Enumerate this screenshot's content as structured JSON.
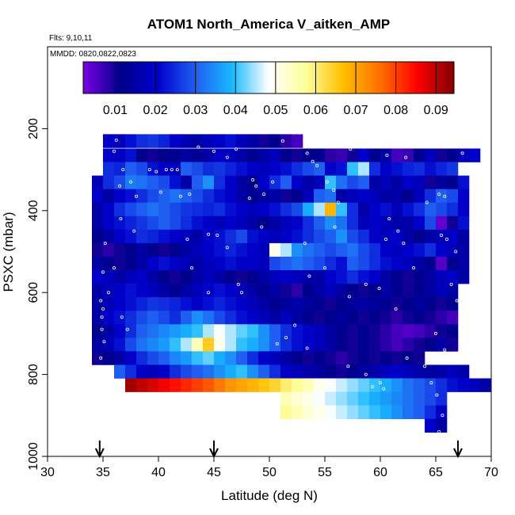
{
  "chart_data": {
    "type": "heatmap",
    "title": "ATOM1 North_America V_aitken_AMP",
    "notes": [
      "Flts: 9,10,11",
      "MMDD: 0820,0822,0823"
    ],
    "xlabel": "Latitude (deg N)",
    "ylabel": "PSXC (mbar)",
    "xlim": [
      30,
      70
    ],
    "ylim": [
      1000,
      0
    ],
    "x_ticks": [
      30,
      35,
      40,
      45,
      50,
      55,
      60,
      65,
      70
    ],
    "y_ticks": [
      200,
      400,
      600,
      800,
      1000
    ],
    "colorbar": {
      "range": [
        0.002,
        0.0945
      ],
      "ticks": [
        "0.01",
        "0.02",
        "0.03",
        "0.04",
        "0.05",
        "0.06",
        "0.07",
        "0.08",
        "0.09"
      ],
      "colors": [
        "#7a00e6",
        "#000088",
        "#0000cc",
        "#1e5cf0",
        "#18b8ff",
        "#ffffff",
        "#ffff99",
        "#ffc000",
        "#ff7000",
        "#ff0000",
        "#800000"
      ]
    },
    "flight_markers_lat": [
      34.7,
      45,
      67
    ],
    "cell_size": {
      "dlat": 1,
      "dp": 33
    },
    "rows": [
      {
        "p": 230,
        "lat0": 35,
        "values": [
          0.02,
          0.018,
          0.022,
          0.025,
          0.026,
          0.024,
          0.02,
          0.017,
          0.015,
          0.018,
          0.02,
          0.022,
          0.018,
          0.015,
          0.01,
          0.012,
          0.008,
          0.006
        ]
      },
      {
        "p": 265,
        "lat0": 35,
        "values": [
          0.02,
          0.019,
          0.022,
          0.012,
          0.01,
          0.011,
          0.012,
          0.015,
          0.013,
          0.015,
          0.02,
          0.018,
          0.015,
          0.012,
          0.015,
          0.018,
          0.011,
          0.01,
          0.012,
          0.011,
          0.008,
          0.007,
          0.01,
          0.02,
          0.012,
          0.015,
          0.006,
          0.007,
          0.012,
          0.018,
          0.01,
          0.012,
          0.018,
          0.02
        ]
      },
      {
        "p": 298,
        "lat0": 35,
        "values": [
          0.025,
          0.024,
          0.03,
          0.028,
          0.022,
          0.02,
          0.018,
          0.03,
          0.028,
          0.025,
          0.026,
          0.024,
          0.022,
          0.02,
          0.018,
          0.02,
          0.022,
          0.025,
          0.028,
          0.03,
          0.02,
          0.022,
          0.04,
          0.045,
          0.025,
          0.02,
          0.022,
          0.024,
          0.025,
          0.022,
          0.024,
          0.026
        ]
      },
      {
        "p": 331,
        "lat0": 34,
        "values": [
          0.018,
          0.025,
          0.028,
          0.033,
          0.032,
          0.03,
          0.028,
          0.022,
          0.015,
          0.03,
          0.035,
          0.025,
          0.02,
          0.015,
          0.012,
          0.02,
          0.025,
          0.03,
          0.02,
          0.015,
          0.018,
          0.04,
          0.032,
          0.028,
          0.03,
          0.015,
          0.018,
          0.015,
          0.02,
          0.018,
          0.01,
          0.014,
          0.012,
          0.022
        ]
      },
      {
        "p": 364,
        "lat0": 34,
        "values": [
          0.02,
          0.015,
          0.02,
          0.022,
          0.025,
          0.028,
          0.03,
          0.032,
          0.03,
          0.028,
          0.025,
          0.022,
          0.02,
          0.015,
          0.012,
          0.015,
          0.015,
          0.01,
          0.012,
          0.018,
          0.03,
          0.032,
          0.015,
          0.018,
          0.02,
          0.018,
          0.015,
          0.015,
          0.012,
          0.018,
          0.025,
          0.03,
          0.028,
          0.02
        ]
      },
      {
        "p": 397,
        "lat0": 34,
        "values": [
          0.015,
          0.02,
          0.025,
          0.028,
          0.03,
          0.032,
          0.03,
          0.028,
          0.026,
          0.025,
          0.024,
          0.025,
          0.022,
          0.02,
          0.018,
          0.02,
          0.022,
          0.025,
          0.028,
          0.038,
          0.045,
          0.068,
          0.04,
          0.025,
          0.015,
          0.02,
          0.022,
          0.018,
          0.022,
          0.025,
          0.03,
          0.028,
          0.025,
          0.02
        ]
      },
      {
        "p": 430,
        "lat0": 34,
        "values": [
          0.015,
          0.02,
          0.022,
          0.024,
          0.026,
          0.028,
          0.03,
          0.028,
          0.025,
          0.022,
          0.02,
          0.018,
          0.02,
          0.018,
          0.015,
          0.012,
          0.015,
          0.018,
          0.02,
          0.025,
          0.03,
          0.035,
          0.032,
          0.025,
          0.018,
          0.02,
          0.018,
          0.016,
          0.015,
          0.02,
          0.028,
          0.004,
          0.01,
          0.022
        ]
      },
      {
        "p": 463,
        "lat0": 34,
        "values": [
          0.012,
          0.015,
          0.02,
          0.022,
          0.025,
          0.024,
          0.022,
          0.02,
          0.018,
          0.015,
          0.02,
          0.022,
          0.025,
          0.028,
          0.022,
          0.02,
          0.018,
          0.02,
          0.022,
          0.025,
          0.028,
          0.03,
          0.035,
          0.028,
          0.025,
          0.02,
          0.018,
          0.02,
          0.015,
          0.012,
          0.015,
          0.018,
          0.02,
          0.015
        ]
      },
      {
        "p": 496,
        "lat0": 34,
        "values": [
          0.01,
          0.008,
          0.01,
          0.012,
          0.015,
          0.012,
          0.01,
          0.012,
          0.015,
          0.018,
          0.02,
          0.022,
          0.024,
          0.022,
          0.02,
          0.018,
          0.05,
          0.045,
          0.035,
          0.032,
          0.03,
          0.028,
          0.03,
          0.032,
          0.028,
          0.025,
          0.02,
          0.018,
          0.02,
          0.022,
          0.025,
          0.02,
          0.018,
          0.015
        ]
      },
      {
        "p": 529,
        "lat0": 34,
        "values": [
          0.015,
          0.012,
          0.01,
          0.012,
          0.015,
          0.02,
          0.022,
          0.02,
          0.018,
          0.015,
          0.018,
          0.02,
          0.022,
          0.02,
          0.02,
          0.018,
          0.028,
          0.03,
          0.032,
          0.03,
          0.028,
          0.025,
          0.022,
          0.03,
          0.028,
          0.025,
          0.022,
          0.02,
          0.018,
          0.015,
          0.012,
          0.005,
          0.012,
          0.015
        ]
      },
      {
        "p": 562,
        "lat0": 34,
        "values": [
          0.02,
          0.018,
          0.015,
          0.018,
          0.02,
          0.015,
          0.012,
          0.01,
          0.012,
          0.015,
          0.018,
          0.015,
          0.012,
          0.01,
          0.012,
          0.015,
          0.018,
          0.02,
          0.018,
          0.016,
          0.015,
          0.02,
          0.022,
          0.025,
          0.022,
          0.02,
          0.015,
          0.012,
          0.01,
          0.012,
          0.015,
          0.018,
          0.02,
          0.015
        ]
      },
      {
        "p": 595,
        "lat0": 34,
        "values": [
          0.015,
          0.018,
          0.02,
          0.022,
          0.02,
          0.018,
          0.015,
          0.012,
          0.015,
          0.018,
          0.02,
          0.022,
          0.02,
          0.018,
          0.015,
          0.012,
          0.015,
          0.01,
          0.008,
          0.012,
          0.015,
          0.018,
          0.015,
          0.012,
          0.01,
          0.012,
          0.015,
          0.012,
          0.01,
          0.012,
          0.015,
          0.018,
          0.015
        ]
      },
      {
        "p": 628,
        "lat0": 34,
        "values": [
          0.015,
          0.018,
          0.02,
          0.022,
          0.024,
          0.026,
          0.025,
          0.024,
          0.022,
          0.02,
          0.022,
          0.024,
          0.022,
          0.02,
          0.018,
          0.015,
          0.012,
          0.014,
          0.016,
          0.014,
          0.012,
          0.01,
          0.012,
          0.014,
          0.015,
          0.014,
          0.012,
          0.01,
          0.012,
          0.014,
          0.012,
          0.01,
          0.012
        ]
      },
      {
        "p": 661,
        "lat0": 34,
        "values": [
          0.015,
          0.02,
          0.022,
          0.025,
          0.028,
          0.03,
          0.028,
          0.025,
          0.03,
          0.035,
          0.032,
          0.028,
          0.025,
          0.022,
          0.02,
          0.018,
          0.015,
          0.018,
          0.015,
          0.012,
          0.01,
          0.012,
          0.014,
          0.012,
          0.01,
          0.012,
          0.01,
          0.008,
          0.01,
          0.012,
          0.01,
          0.008,
          0.006
        ]
      },
      {
        "p": 694,
        "lat0": 34,
        "values": [
          0.012,
          0.015,
          0.02,
          0.025,
          0.03,
          0.032,
          0.034,
          0.036,
          0.038,
          0.04,
          0.045,
          0.048,
          0.045,
          0.042,
          0.04,
          0.035,
          0.03,
          0.025,
          0.022,
          0.02,
          0.018,
          0.015,
          0.012,
          0.01,
          0.012,
          0.01,
          0.008,
          0.006,
          0.005,
          0.006,
          0.008,
          0.01,
          0.012
        ]
      },
      {
        "p": 727,
        "lat0": 34,
        "values": [
          0.015,
          0.018,
          0.022,
          0.028,
          0.032,
          0.034,
          0.036,
          0.04,
          0.045,
          0.055,
          0.065,
          0.05,
          0.045,
          0.04,
          0.038,
          0.035,
          0.03,
          0.025,
          0.022,
          0.02,
          0.018,
          0.015,
          0.012,
          0.01,
          0.012,
          0.01,
          0.008,
          0.006,
          0.008,
          0.01,
          0.012,
          0.015,
          0.01
        ]
      },
      {
        "p": 760,
        "lat0": 34,
        "values": [
          0.01,
          0.012,
          0.015,
          0.02,
          0.025,
          0.028,
          0.03,
          0.034,
          0.036,
          0.04,
          0.042,
          0.038,
          0.035,
          0.03,
          0.025,
          0.02,
          0.018,
          0.015,
          0.012,
          0.01,
          0.012,
          0.01,
          0.008,
          0.01,
          0.012,
          0.01,
          0.012,
          0.01,
          0.012,
          0.01
        ]
      },
      {
        "p": 793,
        "lat0": 36,
        "values": [
          0.03,
          0.025,
          0.02,
          0.018,
          0.02,
          0.025,
          0.028,
          0.03,
          0.032,
          0.035,
          0.038,
          0.04,
          0.035,
          0.03,
          0.025,
          0.02,
          0.018,
          0.016,
          0.014,
          0.012,
          0.01,
          0.012,
          0.014,
          0.016,
          0.018,
          0.02,
          0.018,
          0.016,
          0.014,
          0.016,
          0.018,
          0.016
        ]
      },
      {
        "p": 826,
        "lat0": 37,
        "values": [
          0.092,
          0.09,
          0.088,
          0.086,
          0.084,
          0.082,
          0.08,
          0.078,
          0.075,
          0.072,
          0.07,
          0.068,
          0.066,
          0.064,
          0.06,
          0.058,
          0.055,
          0.05,
          0.048,
          0.046,
          0.044,
          0.042,
          0.04,
          0.038,
          0.035,
          0.032,
          0.03,
          0.028,
          0.025,
          0.022,
          0.02,
          0.018,
          0.015,
          0.012
        ]
      },
      {
        "p": 859,
        "lat0": 51,
        "values": [
          0.055,
          0.052,
          0.05,
          0.048,
          0.046,
          0.044,
          0.042,
          0.04,
          0.038,
          0.036,
          0.034,
          0.032,
          0.03,
          0.028,
          0.025
        ]
      },
      {
        "p": 892,
        "lat0": 51,
        "values": [
          0.058,
          0.055,
          0.052,
          0.05,
          0.048,
          0.046,
          0.044,
          0.042,
          0.04,
          0.038,
          0.035,
          0.032,
          0.03,
          0.025,
          0.02
        ]
      },
      {
        "p": 925,
        "lat0": 64,
        "values": [
          0.02,
          0.015
        ]
      }
    ],
    "sample_points": [
      [
        36.5,
        200
      ],
      [
        37.2,
        200
      ],
      [
        37.8,
        200
      ],
      [
        36.2,
        228
      ],
      [
        36.0,
        255
      ],
      [
        36.8,
        300
      ],
      [
        36.5,
        340
      ],
      [
        37.5,
        330
      ],
      [
        38.0,
        365
      ],
      [
        36.6,
        420
      ],
      [
        37.8,
        450
      ],
      [
        35.2,
        480
      ],
      [
        36.0,
        540
      ],
      [
        35.0,
        550
      ],
      [
        35.5,
        600
      ],
      [
        34.8,
        620
      ],
      [
        35.0,
        640
      ],
      [
        34.9,
        690
      ],
      [
        35.1,
        720
      ],
      [
        34.8,
        760
      ],
      [
        36.7,
        660
      ],
      [
        37.2,
        690
      ],
      [
        39.2,
        300
      ],
      [
        39.8,
        305
      ],
      [
        40.7,
        300
      ],
      [
        41.7,
        300
      ],
      [
        43.6,
        245
      ],
      [
        45.0,
        255
      ],
      [
        46.2,
        270
      ],
      [
        47.0,
        250
      ],
      [
        44.5,
        458
      ],
      [
        45.3,
        460
      ],
      [
        42.6,
        470
      ],
      [
        43.0,
        540
      ],
      [
        44.5,
        600
      ],
      [
        46.2,
        490
      ],
      [
        47.2,
        580
      ],
      [
        47.5,
        600
      ],
      [
        48.5,
        325
      ],
      [
        48.8,
        340
      ],
      [
        48.2,
        370
      ],
      [
        49.3,
        440
      ],
      [
        49.5,
        360
      ],
      [
        50.3,
        330
      ],
      [
        51.2,
        230
      ],
      [
        52.2,
        210
      ],
      [
        52.7,
        210
      ],
      [
        53.4,
        260
      ],
      [
        53.9,
        280
      ],
      [
        54.3,
        290
      ],
      [
        55.2,
        330
      ],
      [
        55.8,
        350
      ],
      [
        56.2,
        380
      ],
      [
        55.9,
        440
      ],
      [
        57.3,
        250
      ],
      [
        58.1,
        230
      ],
      [
        58.6,
        245
      ],
      [
        60.1,
        240
      ],
      [
        60.6,
        265
      ],
      [
        61.2,
        230
      ],
      [
        61.8,
        230
      ],
      [
        62.3,
        270
      ],
      [
        60.8,
        420
      ],
      [
        61.6,
        450
      ],
      [
        60.5,
        470
      ],
      [
        62.1,
        480
      ],
      [
        63.0,
        540
      ],
      [
        64.2,
        380
      ],
      [
        65.3,
        360
      ],
      [
        65.8,
        365
      ],
      [
        66.0,
        470
      ],
      [
        66.8,
        500
      ],
      [
        66.4,
        580
      ],
      [
        66.9,
        620
      ],
      [
        67.4,
        260
      ],
      [
        68.3,
        235
      ],
      [
        68.6,
        235
      ],
      [
        69.2,
        228
      ],
      [
        69.6,
        222
      ],
      [
        65.5,
        460
      ],
      [
        65.0,
        700
      ],
      [
        65.8,
        740
      ],
      [
        66.2,
        760
      ],
      [
        55.0,
        540
      ],
      [
        57.2,
        610
      ],
      [
        58.7,
        580
      ],
      [
        59.9,
        590
      ],
      [
        61.4,
        640
      ],
      [
        62.4,
        760
      ],
      [
        64.0,
        780
      ],
      [
        64.6,
        820
      ],
      [
        65.1,
        850
      ],
      [
        65.6,
        900
      ],
      [
        65.3,
        940
      ],
      [
        57.1,
        780
      ],
      [
        58.7,
        800
      ],
      [
        59.3,
        830
      ],
      [
        60.3,
        835
      ],
      [
        60.0,
        820
      ],
      [
        55.1,
        930
      ],
      [
        52.3,
        680
      ],
      [
        51.5,
        710
      ],
      [
        50.7,
        725
      ],
      [
        53.4,
        736
      ],
      [
        53.6,
        560
      ],
      [
        53.2,
        480
      ],
      [
        41.2,
        300
      ],
      [
        40.2,
        355
      ],
      [
        42.8,
        360
      ],
      [
        42.0,
        365
      ],
      [
        34.9,
        660
      ]
    ]
  }
}
